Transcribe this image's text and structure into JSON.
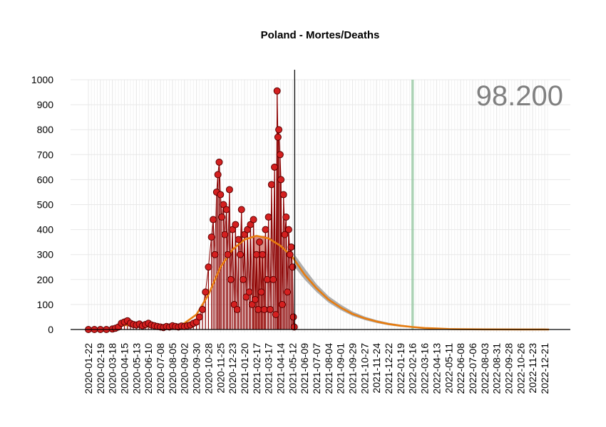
{
  "chart_data": {
    "type": "line",
    "title": "Poland - Mortes/Deaths",
    "annotation_value": "98.200",
    "xlabel": "",
    "ylabel": "",
    "ylim": [
      0,
      1000
    ],
    "y_ticks": [
      0,
      100,
      200,
      300,
      400,
      500,
      600,
      700,
      800,
      900,
      1000
    ],
    "x_range": [
      "2020-01-22",
      "2022-12-31"
    ],
    "x_tick_labels": [
      "2020-01-22",
      "2020-02-19",
      "2020-03-18",
      "2020-04-15",
      "2020-05-13",
      "2020-06-10",
      "2020-07-08",
      "2020-08-05",
      "2020-09-02",
      "2020-09-30",
      "2020-10-28",
      "2020-11-25",
      "2020-12-23",
      "2021-01-20",
      "2021-02-17",
      "2021-03-17",
      "2021-04-14",
      "2021-05-12",
      "2021-06-09",
      "2021-07-07",
      "2021-08-04",
      "2021-09-01",
      "2021-09-29",
      "2021-10-27",
      "2021-11-24",
      "2021-12-22",
      "2022-01-19",
      "2022-02-16",
      "2022-03-16",
      "2022-04-13",
      "2022-05-11",
      "2022-06-08",
      "2022-07-06",
      "2022-08-03",
      "2022-08-31",
      "2022-09-28",
      "2022-10-26",
      "2022-11-23",
      "2022-12-21"
    ],
    "grid": true,
    "current_date_line": "2021-05-17",
    "highlight_band": {
      "start": "2022-02-13",
      "end": "2022-02-19",
      "color": "#8fc49b"
    },
    "shaded_period": {
      "start": "2021-02-08",
      "end": "2021-03-10",
      "color": "#c0392b"
    },
    "colors": {
      "points_fill": "#d42020",
      "points_stroke": "#5a0000",
      "stems": "#8b0000",
      "smooth_line": "#e87c0e",
      "forecast_band": "#a0a0a0",
      "grid": "#e8e8e8"
    },
    "series": [
      {
        "kind": "observed_points",
        "points": [
          [
            "2020-01-22",
            0
          ],
          [
            "2020-02-05",
            0
          ],
          [
            "2020-02-19",
            0
          ],
          [
            "2020-03-04",
            0
          ],
          [
            "2020-03-18",
            2
          ],
          [
            "2020-03-25",
            5
          ],
          [
            "2020-04-01",
            10
          ],
          [
            "2020-04-08",
            25
          ],
          [
            "2020-04-15",
            30
          ],
          [
            "2020-04-22",
            35
          ],
          [
            "2020-04-29",
            25
          ],
          [
            "2020-05-06",
            20
          ],
          [
            "2020-05-13",
            18
          ],
          [
            "2020-05-20",
            22
          ],
          [
            "2020-05-27",
            15
          ],
          [
            "2020-06-03",
            20
          ],
          [
            "2020-06-10",
            25
          ],
          [
            "2020-06-17",
            18
          ],
          [
            "2020-06-24",
            15
          ],
          [
            "2020-07-01",
            12
          ],
          [
            "2020-07-08",
            10
          ],
          [
            "2020-07-15",
            8
          ],
          [
            "2020-07-22",
            12
          ],
          [
            "2020-07-29",
            10
          ],
          [
            "2020-08-05",
            15
          ],
          [
            "2020-08-12",
            12
          ],
          [
            "2020-08-19",
            10
          ],
          [
            "2020-08-26",
            14
          ],
          [
            "2020-09-02",
            12
          ],
          [
            "2020-09-09",
            15
          ],
          [
            "2020-09-16",
            18
          ],
          [
            "2020-09-23",
            25
          ],
          [
            "2020-09-30",
            30
          ],
          [
            "2020-10-07",
            50
          ],
          [
            "2020-10-14",
            80
          ],
          [
            "2020-10-21",
            150
          ],
          [
            "2020-10-28",
            250
          ],
          [
            "2020-11-04",
            370
          ],
          [
            "2020-11-08",
            440
          ],
          [
            "2020-11-12",
            300
          ],
          [
            "2020-11-16",
            550
          ],
          [
            "2020-11-19",
            620
          ],
          [
            "2020-11-22",
            670
          ],
          [
            "2020-11-25",
            540
          ],
          [
            "2020-11-28",
            450
          ],
          [
            "2020-12-02",
            500
          ],
          [
            "2020-12-05",
            380
          ],
          [
            "2020-12-09",
            480
          ],
          [
            "2020-12-12",
            300
          ],
          [
            "2020-12-16",
            560
          ],
          [
            "2020-12-19",
            200
          ],
          [
            "2020-12-23",
            400
          ],
          [
            "2020-12-27",
            100
          ],
          [
            "2020-12-30",
            420
          ],
          [
            "2021-01-03",
            80
          ],
          [
            "2021-01-06",
            360
          ],
          [
            "2021-01-10",
            300
          ],
          [
            "2021-01-13",
            480
          ],
          [
            "2021-01-17",
            200
          ],
          [
            "2021-01-20",
            380
          ],
          [
            "2021-01-24",
            130
          ],
          [
            "2021-01-27",
            400
          ],
          [
            "2021-01-31",
            150
          ],
          [
            "2021-02-03",
            420
          ],
          [
            "2021-02-07",
            100
          ],
          [
            "2021-02-10",
            440
          ],
          [
            "2021-02-14",
            120
          ],
          [
            "2021-02-17",
            300
          ],
          [
            "2021-02-21",
            80
          ],
          [
            "2021-02-24",
            350
          ],
          [
            "2021-02-28",
            150
          ],
          [
            "2021-03-03",
            300
          ],
          [
            "2021-03-07",
            80
          ],
          [
            "2021-03-10",
            400
          ],
          [
            "2021-03-14",
            200
          ],
          [
            "2021-03-17",
            450
          ],
          [
            "2021-03-21",
            80
          ],
          [
            "2021-03-24",
            580
          ],
          [
            "2021-03-28",
            200
          ],
          [
            "2021-03-31",
            650
          ],
          [
            "2021-04-03",
            60
          ],
          [
            "2021-04-06",
            955
          ],
          [
            "2021-04-08",
            770
          ],
          [
            "2021-04-10",
            800
          ],
          [
            "2021-04-13",
            700
          ],
          [
            "2021-04-15",
            600
          ],
          [
            "2021-04-18",
            100
          ],
          [
            "2021-04-21",
            540
          ],
          [
            "2021-04-24",
            380
          ],
          [
            "2021-04-27",
            450
          ],
          [
            "2021-04-30",
            150
          ],
          [
            "2021-05-03",
            400
          ],
          [
            "2021-05-06",
            300
          ],
          [
            "2021-05-09",
            330
          ],
          [
            "2021-05-12",
            250
          ],
          [
            "2021-05-14",
            50
          ],
          [
            "2021-05-16",
            10
          ]
        ]
      },
      {
        "kind": "smoothed_trend",
        "points": [
          [
            "2020-01-22",
            0
          ],
          [
            "2020-03-18",
            3
          ],
          [
            "2020-04-15",
            18
          ],
          [
            "2020-05-13",
            15
          ],
          [
            "2020-06-10",
            12
          ],
          [
            "2020-07-08",
            10
          ],
          [
            "2020-08-05",
            12
          ],
          [
            "2020-09-02",
            25
          ],
          [
            "2020-09-30",
            60
          ],
          [
            "2020-10-28",
            140
          ],
          [
            "2020-11-25",
            250
          ],
          [
            "2020-12-23",
            320
          ],
          [
            "2021-01-20",
            360
          ],
          [
            "2021-02-17",
            375
          ],
          [
            "2021-03-17",
            365
          ],
          [
            "2021-04-14",
            335
          ],
          [
            "2021-05-12",
            290
          ],
          [
            "2021-06-09",
            220
          ],
          [
            "2021-07-07",
            165
          ],
          [
            "2021-08-04",
            120
          ],
          [
            "2021-09-01",
            88
          ],
          [
            "2021-09-29",
            62
          ],
          [
            "2021-10-27",
            45
          ],
          [
            "2021-11-24",
            32
          ],
          [
            "2021-12-22",
            22
          ],
          [
            "2022-01-19",
            15
          ],
          [
            "2022-02-16",
            10
          ],
          [
            "2022-03-16",
            6
          ],
          [
            "2022-04-13",
            4
          ],
          [
            "2022-05-11",
            2
          ],
          [
            "2022-06-08",
            1
          ],
          [
            "2022-08-03",
            0.5
          ],
          [
            "2022-10-26",
            0.2
          ],
          [
            "2022-12-31",
            0
          ]
        ]
      },
      {
        "kind": "forecast_band",
        "points": [
          [
            "2021-05-17",
            250,
            300
          ],
          [
            "2021-06-09",
            200,
            245
          ],
          [
            "2021-07-07",
            150,
            182
          ],
          [
            "2021-08-04",
            108,
            134
          ],
          [
            "2021-09-01",
            78,
            100
          ],
          [
            "2021-09-29",
            54,
            72
          ],
          [
            "2021-10-27",
            38,
            52
          ],
          [
            "2021-11-24",
            26,
            38
          ],
          [
            "2021-12-22",
            17,
            27
          ],
          [
            "2022-01-19",
            11,
            19
          ],
          [
            "2022-02-16",
            7,
            13
          ],
          [
            "2022-03-16",
            4,
            8
          ],
          [
            "2022-04-13",
            2,
            5
          ],
          [
            "2022-05-11",
            1,
            3
          ],
          [
            "2022-06-08",
            0.5,
            1.5
          ],
          [
            "2022-08-03",
            0.2,
            0.8
          ],
          [
            "2022-12-31",
            0,
            0.3
          ]
        ]
      }
    ]
  }
}
